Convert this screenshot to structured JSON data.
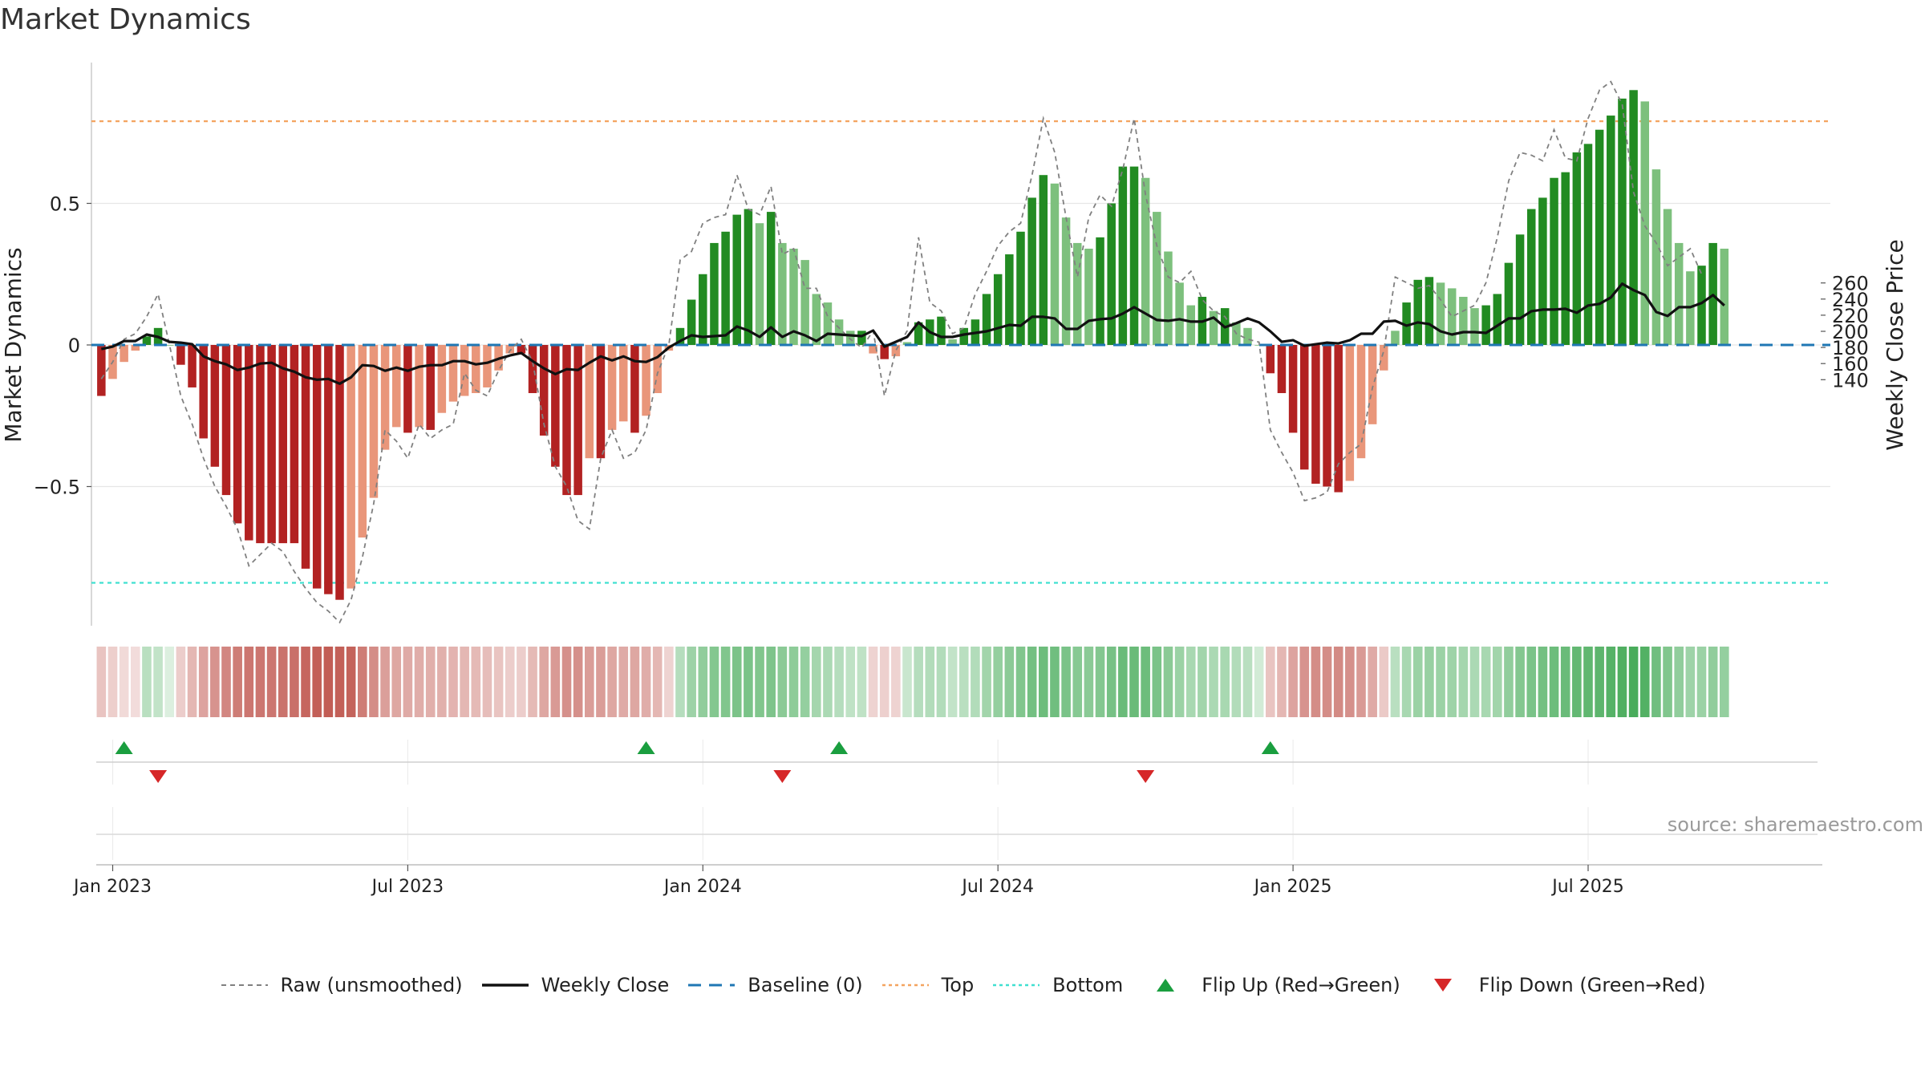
{
  "title": "Market Dynamics",
  "watermark": "source: sharemaestro.com",
  "chart_data": {
    "type": "bar",
    "title": "Market Dynamics",
    "ylabel_left": "Market Dynamics",
    "ylabel_right": "Weekly Close Price",
    "y_left_ticks": [
      "0.5",
      "0",
      "−0.5"
    ],
    "y_left_tick_values": [
      0.5,
      0,
      -0.5
    ],
    "y_left_range": [
      -0.98,
      0.98
    ],
    "y_right_ticks": [
      "260",
      "240",
      "220",
      "200",
      "180",
      "160",
      "140"
    ],
    "y_right_tick_values": [
      260,
      240,
      220,
      200,
      180,
      160,
      140
    ],
    "y_right_range": [
      126,
      272
    ],
    "x_ticks": [
      "Jan 2023",
      "Jul 2023",
      "Jan 2024",
      "Jul 2024",
      "Jan 2025",
      "Jul 2025"
    ],
    "x_tick_weeks": [
      0,
      26,
      52,
      78,
      104,
      130
    ],
    "first_week_offset": -1,
    "top_level": 0.79,
    "bottom_level": -0.84,
    "legend": [
      "Raw (unsmoothed)",
      "Weekly Close",
      "Baseline (0)",
      "Top",
      "Bottom",
      "Flip Up (Red→Green)",
      "Flip Down (Green→Red)"
    ],
    "colors": {
      "pos_strong": "#228B22",
      "pos_weak": "#7DC07D",
      "neg_strong": "#B22222",
      "neg_weak": "#E9967A",
      "raw_line": "#808080",
      "close_line": "#111111",
      "baseline": "#1f77b4",
      "top": "#F4A460",
      "bottom": "#40E0D0",
      "flip_up": "#1a9e3f",
      "flip_down": "#d62728"
    },
    "momentum": [
      -0.18,
      -0.12,
      -0.06,
      -0.02,
      0.03,
      0.06,
      0.0,
      -0.07,
      -0.15,
      -0.33,
      -0.43,
      -0.53,
      -0.63,
      -0.69,
      -0.7,
      -0.7,
      -0.7,
      -0.7,
      -0.79,
      -0.86,
      -0.88,
      -0.9,
      -0.86,
      -0.68,
      -0.54,
      -0.37,
      -0.29,
      -0.31,
      -0.29,
      -0.3,
      -0.24,
      -0.2,
      -0.18,
      -0.17,
      -0.15,
      -0.09,
      -0.03,
      -0.03,
      -0.17,
      -0.32,
      -0.43,
      -0.53,
      -0.53,
      -0.4,
      -0.4,
      -0.3,
      -0.27,
      -0.31,
      -0.25,
      -0.17,
      -0.02,
      0.06,
      0.16,
      0.25,
      0.36,
      0.4,
      0.46,
      0.48,
      0.43,
      0.47,
      0.36,
      0.34,
      0.3,
      0.18,
      0.15,
      0.09,
      0.05,
      0.05,
      -0.03,
      -0.05,
      -0.04,
      0.01,
      0.08,
      0.09,
      0.1,
      0.02,
      0.06,
      0.09,
      0.18,
      0.25,
      0.32,
      0.4,
      0.52,
      0.6,
      0.57,
      0.45,
      0.36,
      0.34,
      0.38,
      0.5,
      0.63,
      0.63,
      0.59,
      0.47,
      0.33,
      0.22,
      0.14,
      0.17,
      0.12,
      0.13,
      0.08,
      0.06,
      0.0,
      -0.1,
      -0.17,
      -0.31,
      -0.44,
      -0.49,
      -0.5,
      -0.52,
      -0.48,
      -0.4,
      -0.28,
      -0.09,
      0.05,
      0.15,
      0.23,
      0.24,
      0.22,
      0.2,
      0.17,
      0.13,
      0.14,
      0.18,
      0.29,
      0.39,
      0.48,
      0.52,
      0.59,
      0.61,
      0.68,
      0.71,
      0.76,
      0.81,
      0.87,
      0.9,
      0.86,
      0.62,
      0.48,
      0.36,
      0.26,
      0.28,
      0.36,
      0.34
    ],
    "raw": [
      -0.12,
      -0.06,
      0.02,
      0.04,
      0.1,
      0.18,
      0.0,
      -0.18,
      -0.28,
      -0.4,
      -0.5,
      -0.57,
      -0.65,
      -0.78,
      -0.74,
      -0.7,
      -0.73,
      -0.8,
      -0.86,
      -0.91,
      -0.94,
      -0.98,
      -0.9,
      -0.75,
      -0.56,
      -0.3,
      -0.34,
      -0.4,
      -0.28,
      -0.33,
      -0.3,
      -0.28,
      -0.1,
      -0.16,
      -0.18,
      -0.09,
      -0.02,
      0.02,
      -0.06,
      -0.28,
      -0.43,
      -0.5,
      -0.62,
      -0.65,
      -0.4,
      -0.3,
      -0.4,
      -0.38,
      -0.3,
      -0.1,
      0.0,
      0.3,
      0.33,
      0.43,
      0.45,
      0.46,
      0.6,
      0.48,
      0.46,
      0.56,
      0.32,
      0.34,
      0.2,
      0.2,
      0.1,
      0.06,
      0.02,
      -0.01,
      0.05,
      -0.18,
      -0.02,
      0.05,
      0.38,
      0.15,
      0.12,
      0.04,
      0.06,
      0.18,
      0.26,
      0.35,
      0.4,
      0.43,
      0.6,
      0.8,
      0.68,
      0.45,
      0.24,
      0.45,
      0.53,
      0.49,
      0.62,
      0.8,
      0.53,
      0.35,
      0.24,
      0.22,
      0.26,
      0.16,
      0.12,
      0.1,
      0.04,
      0.02,
      0.01,
      -0.3,
      -0.38,
      -0.45,
      -0.55,
      -0.54,
      -0.52,
      -0.42,
      -0.38,
      -0.35,
      -0.15,
      -0.02,
      0.24,
      0.22,
      0.2,
      0.21,
      0.16,
      0.1,
      0.12,
      0.14,
      0.22,
      0.38,
      0.58,
      0.68,
      0.67,
      0.65,
      0.76,
      0.66,
      0.65,
      0.8,
      0.9,
      0.93,
      0.85,
      0.54,
      0.42,
      0.36,
      0.28,
      0.31,
      0.34,
      0.25
    ],
    "close": [
      178,
      181,
      188,
      188,
      196,
      193,
      187,
      186,
      184,
      169,
      163,
      159,
      152,
      155,
      160,
      161,
      154,
      150,
      143,
      140,
      141,
      135,
      143,
      158,
      157,
      151,
      155,
      151,
      156,
      158,
      158,
      163,
      163,
      159,
      161,
      166,
      170,
      173,
      163,
      154,
      147,
      153,
      152,
      161,
      169,
      164,
      169,
      163,
      162,
      168,
      180,
      188,
      195,
      193,
      194,
      195,
      206,
      201,
      193,
      205,
      193,
      200,
      195,
      188,
      197,
      196,
      195,
      194,
      201,
      181,
      187,
      193,
      211,
      199,
      193,
      193,
      196,
      198,
      200,
      204,
      208,
      207,
      218,
      218,
      216,
      203,
      203,
      213,
      215,
      216,
      222,
      230,
      222,
      214,
      213,
      215,
      212,
      212,
      217,
      205,
      210,
      216,
      211,
      200,
      187,
      189,
      182,
      184,
      186,
      185,
      189,
      197,
      197,
      212,
      213,
      207,
      211,
      209,
      200,
      196,
      199,
      199,
      198,
      207,
      216,
      216,
      225,
      227,
      227,
      228,
      223,
      232,
      234,
      242,
      259,
      251,
      245,
      224,
      219,
      230,
      230,
      235,
      245,
      232
    ],
    "strength_alpha": [
      0.22,
      0.15,
      0.08,
      0.06,
      0.28,
      0.22,
      0.06,
      0.16,
      0.3,
      0.42,
      0.52,
      0.6,
      0.66,
      0.7,
      0.7,
      0.7,
      0.72,
      0.74,
      0.8,
      0.84,
      0.86,
      0.84,
      0.82,
      0.66,
      0.56,
      0.45,
      0.4,
      0.38,
      0.36,
      0.35,
      0.34,
      0.32,
      0.3,
      0.28,
      0.26,
      0.22,
      0.16,
      0.16,
      0.28,
      0.4,
      0.48,
      0.54,
      0.54,
      0.46,
      0.46,
      0.4,
      0.38,
      0.4,
      0.36,
      0.3,
      0.12,
      0.3,
      0.45,
      0.52,
      0.6,
      0.62,
      0.65,
      0.66,
      0.62,
      0.64,
      0.56,
      0.54,
      0.5,
      0.4,
      0.36,
      0.3,
      0.24,
      0.24,
      0.12,
      0.14,
      0.12,
      0.18,
      0.3,
      0.32,
      0.32,
      0.22,
      0.28,
      0.32,
      0.42,
      0.5,
      0.56,
      0.62,
      0.7,
      0.74,
      0.72,
      0.66,
      0.58,
      0.56,
      0.6,
      0.68,
      0.76,
      0.76,
      0.74,
      0.66,
      0.56,
      0.46,
      0.38,
      0.42,
      0.36,
      0.38,
      0.32,
      0.28,
      0.12,
      0.22,
      0.3,
      0.42,
      0.52,
      0.56,
      0.56,
      0.58,
      0.54,
      0.48,
      0.38,
      0.18,
      0.28,
      0.38,
      0.46,
      0.48,
      0.46,
      0.44,
      0.4,
      0.36,
      0.38,
      0.42,
      0.52,
      0.6,
      0.66,
      0.7,
      0.74,
      0.76,
      0.8,
      0.82,
      0.84,
      0.88,
      0.92,
      0.96,
      0.9,
      0.72,
      0.62,
      0.52,
      0.44,
      0.46,
      0.52,
      0.5
    ],
    "flip_up_weeks": [
      2,
      48,
      65,
      103
    ],
    "flip_down_weeks": [
      5,
      60,
      92
    ]
  }
}
